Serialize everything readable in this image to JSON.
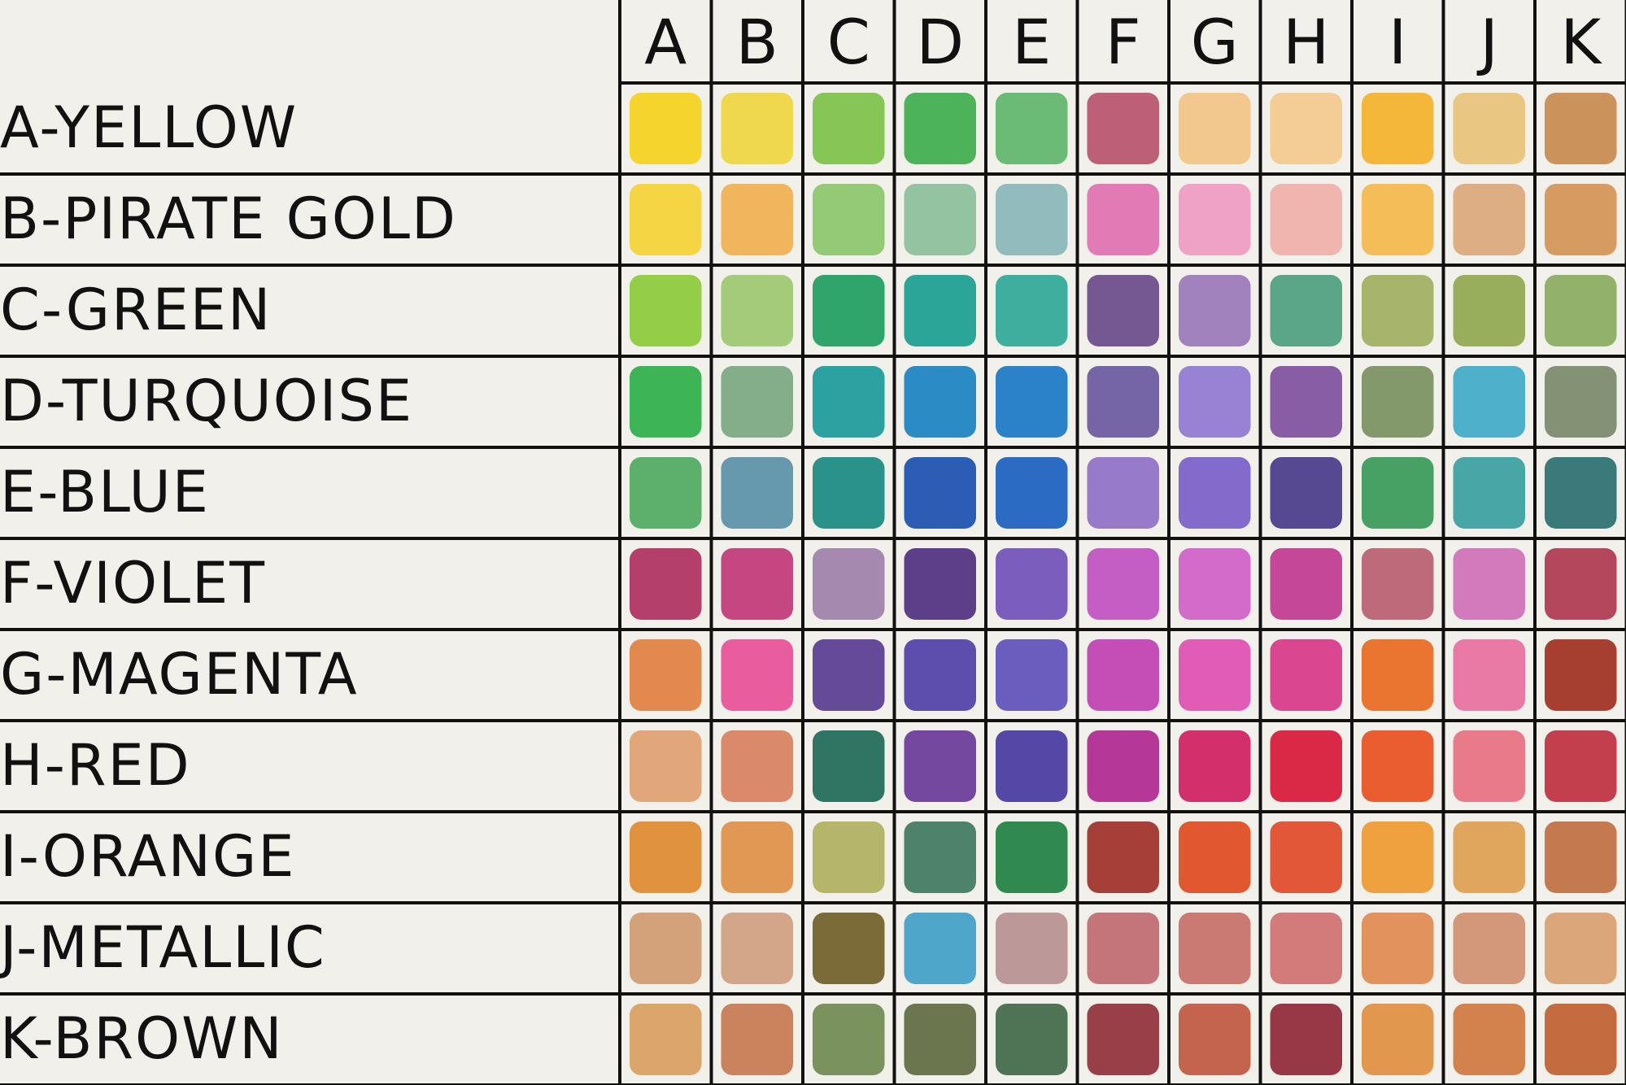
{
  "columns": [
    "A",
    "B",
    "C",
    "D",
    "E",
    "F",
    "G",
    "H",
    "I",
    "J",
    "K"
  ],
  "rows": [
    {
      "label": "A-YELLOW",
      "swatches": [
        "#f5d21c",
        "#f0d640",
        "#7cc24a",
        "#3fae4e",
        "#5fb56a",
        "#b8526a",
        "#f2c487",
        "#f3c98e",
        "#f5b22a",
        "#e9c27a",
        "#c98a4e"
      ]
    },
    {
      "label": "B-PIRATE GOLD",
      "swatches": [
        "#f5d335",
        "#f0b050",
        "#8cc56a",
        "#8cbf9a",
        "#8ab6b8",
        "#e070b0",
        "#f09bc0",
        "#f0b0a8",
        "#f5b84a",
        "#dba77a",
        "#d39454"
      ]
    },
    {
      "label": "C-GREEN",
      "swatches": [
        "#8cca3a",
        "#9cc870",
        "#1e9e60",
        "#1a9e90",
        "#30a898",
        "#6a4a8a",
        "#9a78b8",
        "#4ea080",
        "#a0b060",
        "#90a850",
        "#8aac60"
      ]
    },
    {
      "label": "D-TURQUOISE",
      "swatches": [
        "#2eaf48",
        "#7aa880",
        "#1a9a9a",
        "#1a82c0",
        "#1a78c4",
        "#6a58a0",
        "#9078d0",
        "#8050a0",
        "#7a9060",
        "#40aac8",
        "#7a8a6a"
      ]
    },
    {
      "label": "E-BLUE",
      "swatches": [
        "#50aa60",
        "#5a90a8",
        "#1a8a80",
        "#1a50b0",
        "#1a60c0",
        "#9070c8",
        "#7a60c8",
        "#4a3a8a",
        "#3a9a58",
        "#3aa0a0",
        "#2a7070"
      ]
    },
    {
      "label": "F-VIOLET",
      "swatches": [
        "#b03060",
        "#c03878",
        "#a080a8",
        "#503080",
        "#7050b8",
        "#c050c0",
        "#d060c8",
        "#c03890",
        "#b86070",
        "#d070b8",
        "#b03850"
      ]
    },
    {
      "label": "G-MAGENTA",
      "swatches": [
        "#e08040",
        "#e85098",
        "#583c90",
        "#5040a8",
        "#6050b8",
        "#c040b0",
        "#e050b0",
        "#d83888",
        "#e86a20",
        "#e870a0",
        "#a03020"
      ]
    },
    {
      "label": "H-RED",
      "swatches": [
        "#e0a070",
        "#d88060",
        "#206a58",
        "#6a3a98",
        "#4838a0",
        "#b02890",
        "#d02060",
        "#d81838",
        "#e85020",
        "#e87080",
        "#c03040"
      ]
    },
    {
      "label": "I-ORANGE",
      "swatches": [
        "#e08a30",
        "#e09048",
        "#b0b060",
        "#407860",
        "#208040",
        "#a03028",
        "#e04a20",
        "#e04a28",
        "#f09a30",
        "#e0a050",
        "#c07040"
      ]
    },
    {
      "label": "J-METALLIC",
      "swatches": [
        "#d09a70",
        "#d0a080",
        "#706028",
        "#40a0c8",
        "#b89090",
        "#c06a70",
        "#c87068",
        "#d07070",
        "#e08a50",
        "#d09070",
        "#d8a070"
      ]
    },
    {
      "label": "K-BROWN",
      "swatches": [
        "#d8a060",
        "#c87a50",
        "#708a50",
        "#606a40",
        "#406848",
        "#903038",
        "#c05840",
        "#902838",
        "#e09040",
        "#d07840",
        "#c06030"
      ]
    }
  ]
}
